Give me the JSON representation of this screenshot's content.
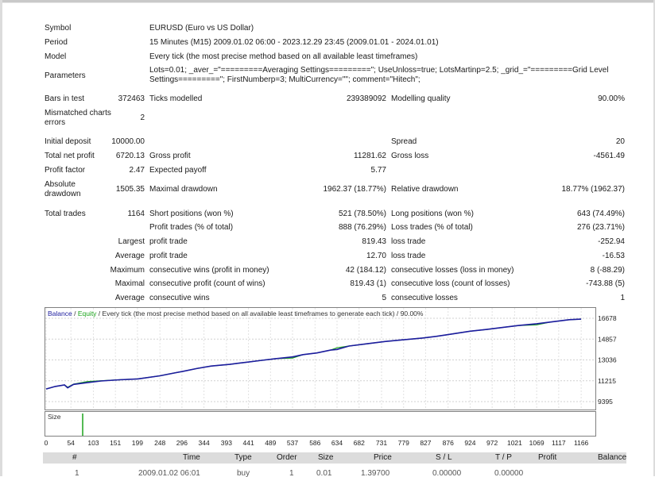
{
  "info": {
    "symbol_label": "Symbol",
    "symbol_value": "EURUSD (Euro vs US Dollar)",
    "period_label": "Period",
    "period_value": "15 Minutes (M15) 2009.01.02 06:00 - 2023.12.29 23:45 (2009.01.01 - 2024.01.01)",
    "model_label": "Model",
    "model_value": "Every tick (the most precise method based on all available least timeframes)",
    "params_label": "Parameters",
    "params_line1": "Lots=0.01; _aver_=\"=========Averaging Settings=========\"; UseUnloss=true; LotsMartinp=2.5; _grid_=\"=========Grid Level",
    "params_line2": "Settings=========\"; FirstNumberp=3; MultiCurrency=\"\"; comment=\"Hitech\";",
    "bars_label": "Bars in test",
    "bars_value": "372463",
    "ticks_label": "Ticks modelled",
    "ticks_value": "239389092",
    "quality_label": "Modelling quality",
    "quality_value": "90.00%",
    "mismatch_label": "Mismatched charts errors",
    "mismatch_value": "2"
  },
  "stats": {
    "initial_deposit_label": "Initial deposit",
    "initial_deposit": "10000.00",
    "spread_label": "Spread",
    "spread": "20",
    "net_profit_label": "Total net profit",
    "net_profit": "6720.13",
    "gross_profit_label": "Gross profit",
    "gross_profit": "11281.62",
    "gross_loss_label": "Gross loss",
    "gross_loss": "-4561.49",
    "profit_factor_label": "Profit factor",
    "profit_factor": "2.47",
    "expected_payoff_label": "Expected payoff",
    "expected_payoff": "5.77",
    "abs_dd_label": "Absolute drawdown",
    "abs_dd": "1505.35",
    "max_dd_label": "Maximal drawdown",
    "max_dd": "1962.37 (18.77%)",
    "rel_dd_label": "Relative drawdown",
    "rel_dd": "18.77% (1962.37)",
    "total_trades_label": "Total trades",
    "total_trades": "1164",
    "short_label": "Short positions (won %)",
    "short": "521 (78.50%)",
    "long_label": "Long positions (won %)",
    "long": "643 (74.49%)",
    "profit_trades_label": "Profit trades (% of total)",
    "profit_trades": "888 (76.29%)",
    "loss_trades_label": "Loss trades (% of total)",
    "loss_trades": "276 (23.71%)",
    "largest_label": "Largest",
    "largest_profit_label": "profit trade",
    "largest_profit": "819.43",
    "largest_loss_label": "loss trade",
    "largest_loss": "-252.94",
    "average_label": "Average",
    "avg_profit_label": "profit trade",
    "avg_profit": "12.70",
    "avg_loss_label": "loss trade",
    "avg_loss": "-16.53",
    "maximum_label": "Maximum",
    "max_cons_wins_label": "consecutive wins (profit in money)",
    "max_cons_wins": "42 (184.12)",
    "max_cons_losses_label": "consecutive losses (loss in money)",
    "max_cons_losses": "8 (-88.29)",
    "maximal_label": "Maximal",
    "maximal_cons_profit_label": "consecutive profit (count of wins)",
    "maximal_cons_profit": "819.43 (1)",
    "maximal_cons_loss_label": "consecutive loss (count of losses)",
    "maximal_cons_loss": "-743.88 (5)",
    "average2_label": "Average",
    "avg_cons_wins_label": "consecutive wins",
    "avg_cons_wins": "5",
    "avg_cons_losses_label": "consecutive losses",
    "avg_cons_losses": "1"
  },
  "chart_data": {
    "type": "line",
    "legend_balance": "Balance",
    "legend_sep": " / ",
    "legend_equity": "Equity",
    "legend_rest": " / Every tick (the most precise method based on all available least timeframes to generate each tick) / 90.00%",
    "y_ticks": [
      "16678",
      "14857",
      "13036",
      "11215",
      "9395"
    ],
    "ylim": [
      9395,
      16678
    ],
    "x_ticks": [
      "0",
      "54",
      "103",
      "151",
      "199",
      "248",
      "296",
      "344",
      "393",
      "441",
      "489",
      "537",
      "586",
      "634",
      "682",
      "731",
      "779",
      "827",
      "876",
      "924",
      "972",
      "1021",
      "1069",
      "1117",
      "1166"
    ],
    "xlim": [
      0,
      1190
    ],
    "size_label": "Size",
    "colors": {
      "balance": "#1c1c9e",
      "equity": "#1aa31a",
      "size": "#1aa31a"
    },
    "series": [
      {
        "name": "Balance",
        "x": [
          0,
          20,
          40,
          47,
          60,
          90,
          120,
          160,
          200,
          248,
          280,
          300,
          330,
          360,
          400,
          420,
          440,
          470,
          500,
          537,
          560,
          590,
          620,
          634,
          660,
          700,
          740,
          779,
          820,
          850,
          876,
          900,
          924,
          960,
          1000,
          1030,
          1069,
          1100,
          1140,
          1166
        ],
        "y": [
          10500,
          10720,
          10850,
          10600,
          10900,
          11050,
          11200,
          11300,
          11380,
          11650,
          11900,
          12050,
          12300,
          12500,
          12650,
          12750,
          12850,
          13000,
          13150,
          13300,
          13500,
          13650,
          13900,
          13950,
          14250,
          14450,
          14650,
          14800,
          14950,
          15100,
          15250,
          15400,
          15550,
          15700,
          15900,
          16050,
          16200,
          16350,
          16550,
          16600
        ]
      },
      {
        "name": "Equity",
        "x": [
          0,
          20,
          40,
          47,
          60,
          90,
          120,
          160,
          200,
          248,
          280,
          300,
          330,
          360,
          400,
          420,
          440,
          470,
          500,
          537,
          560,
          590,
          620,
          634,
          660,
          700,
          740,
          779,
          820,
          850,
          876,
          900,
          924,
          960,
          1000,
          1030,
          1069,
          1100,
          1140,
          1166
        ],
        "y": [
          10500,
          10720,
          10850,
          10650,
          10920,
          11150,
          11220,
          11300,
          11380,
          11650,
          11900,
          12050,
          12300,
          12500,
          12650,
          12750,
          12850,
          13000,
          13150,
          13200,
          13500,
          13650,
          13900,
          14100,
          14250,
          14450,
          14650,
          14800,
          14950,
          15100,
          15250,
          15400,
          15550,
          15700,
          15900,
          16050,
          16100,
          16350,
          16550,
          16600
        ]
      }
    ]
  },
  "table": {
    "headers": [
      "#",
      "Time",
      "Type",
      "Order",
      "Size",
      "Price",
      "S / L",
      "T / P",
      "Profit",
      "Balance"
    ],
    "partial_row": [
      "1",
      "2009.01.02 06:01",
      "buy",
      "1",
      "0.01",
      "1.39700",
      "0.00000",
      "0.00000",
      "",
      ""
    ]
  }
}
